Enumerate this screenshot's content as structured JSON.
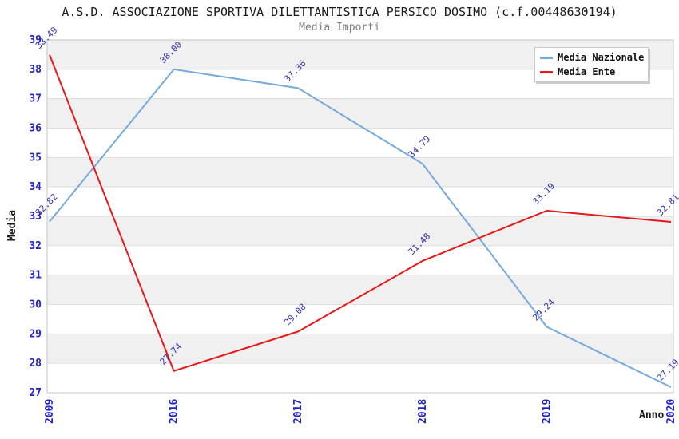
{
  "header": {
    "title": "A.S.D. ASSOCIAZIONE SPORTIVA DILETTANTISTICA PERSICO DOSIMO (c.f.00448630194)",
    "subtitle": "Media Importi"
  },
  "chart_data": {
    "type": "line",
    "title": "A.S.D. ASSOCIAZIONE SPORTIVA DILETTANTISTICA PERSICO DOSIMO (c.f.00448630194)",
    "subtitle": "Media Importi",
    "xlabel": "Anno",
    "ylabel": "Media",
    "categories": [
      "2009",
      "2016",
      "2017",
      "2018",
      "2019",
      "2020"
    ],
    "ylim": [
      27,
      39
    ],
    "y_tick_step": 1,
    "grid": "horizontal-bands",
    "legend_position": "top-right",
    "series": [
      {
        "name": "Media Nazionale",
        "color": "#74a9dd",
        "values": [
          32.82,
          38.0,
          37.36,
          34.79,
          29.24,
          27.19
        ],
        "labels": [
          "32.82",
          "38.00",
          "37.36",
          "34.79",
          "29.24",
          "27.19"
        ]
      },
      {
        "name": "Media Ente",
        "color": "#e81717",
        "values": [
          38.49,
          27.74,
          29.08,
          31.48,
          33.19,
          32.81
        ],
        "labels": [
          "38.49",
          "27.74",
          "29.08",
          "31.48",
          "33.19",
          "32.81"
        ]
      }
    ],
    "colors": {
      "band_gray": "#f0f0f0",
      "band_white": "#ffffff",
      "gridline": "#dedede",
      "plot_border": "#c6c6c6",
      "tick_label": "#2222cc",
      "value_label": "#3333aa",
      "axis_title": "#1a1a1a"
    }
  }
}
